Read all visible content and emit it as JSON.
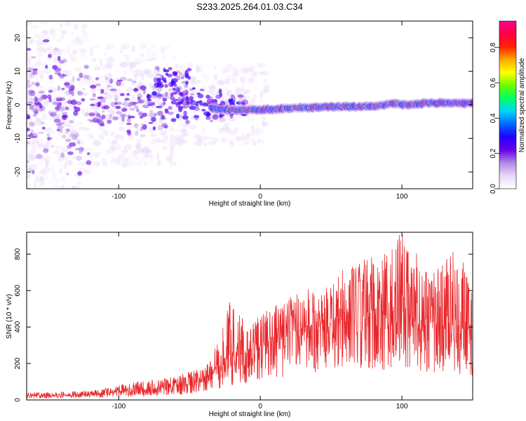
{
  "title": "S233.2025.264.01.03.C34",
  "chart_data": [
    {
      "type": "heatmap",
      "xlabel": "Height of straight line (km)",
      "ylabel": "Frequency (Hz)",
      "xlim": [
        -165,
        150
      ],
      "ylim": [
        -25,
        25
      ],
      "xticks": [
        -100,
        0,
        100
      ],
      "yticks": [
        -20,
        -10,
        0,
        10,
        20
      ],
      "colorbar": {
        "label": "Normalized spectral amplitude",
        "range": [
          0,
          0.95
        ],
        "ticks": [
          0.0,
          0.2,
          0.4,
          0.6,
          0.8
        ],
        "colors": [
          "#ffffff",
          "#e8d8f8",
          "#b08ae6",
          "#6a00e8",
          "#2200ff",
          "#0066ff",
          "#00d4ff",
          "#00ff66",
          "#66ff00",
          "#ffff00",
          "#ffaa00",
          "#ff2200",
          "#ff0044",
          "#ff0088"
        ]
      },
      "ridge": {
        "x": [
          -35,
          -20,
          0,
          20,
          50,
          80,
          95,
          100,
          120,
          150
        ],
        "frequency": [
          -1,
          -1.5,
          -1.5,
          -1,
          -0.5,
          -0.5,
          0.5,
          0,
          0.5,
          0.5
        ],
        "peak_amplitude": [
          0.3,
          0.85,
          0.9,
          0.85,
          0.8,
          0.85,
          0.9,
          0.85,
          0.9,
          0.95
        ]
      },
      "diffuse_region": {
        "x_from": -165,
        "x_to": -25,
        "frequency_spread": [
          -25,
          25
        ],
        "amplitude_max": 0.3
      }
    },
    {
      "type": "line",
      "xlabel": "Height of straight line (km)",
      "ylabel": "SNR (10 * v/v)",
      "xlim": [
        -165,
        150
      ],
      "ylim": [
        0,
        920
      ],
      "xticks": [
        -100,
        0,
        100
      ],
      "yticks": [
        0,
        200,
        400,
        600,
        800
      ],
      "color": "#e8262a",
      "envelope": {
        "x": [
          -165,
          -120,
          -80,
          -60,
          -40,
          -30,
          -20,
          -10,
          0,
          20,
          40,
          60,
          80,
          100,
          120,
          140,
          150
        ],
        "mean": [
          25,
          30,
          60,
          80,
          100,
          170,
          230,
          260,
          300,
          360,
          420,
          440,
          460,
          470,
          420,
          400,
          350
        ],
        "max": [
          40,
          50,
          110,
          130,
          180,
          330,
          580,
          400,
          470,
          560,
          640,
          720,
          800,
          920,
          700,
          850,
          580
        ]
      }
    }
  ]
}
